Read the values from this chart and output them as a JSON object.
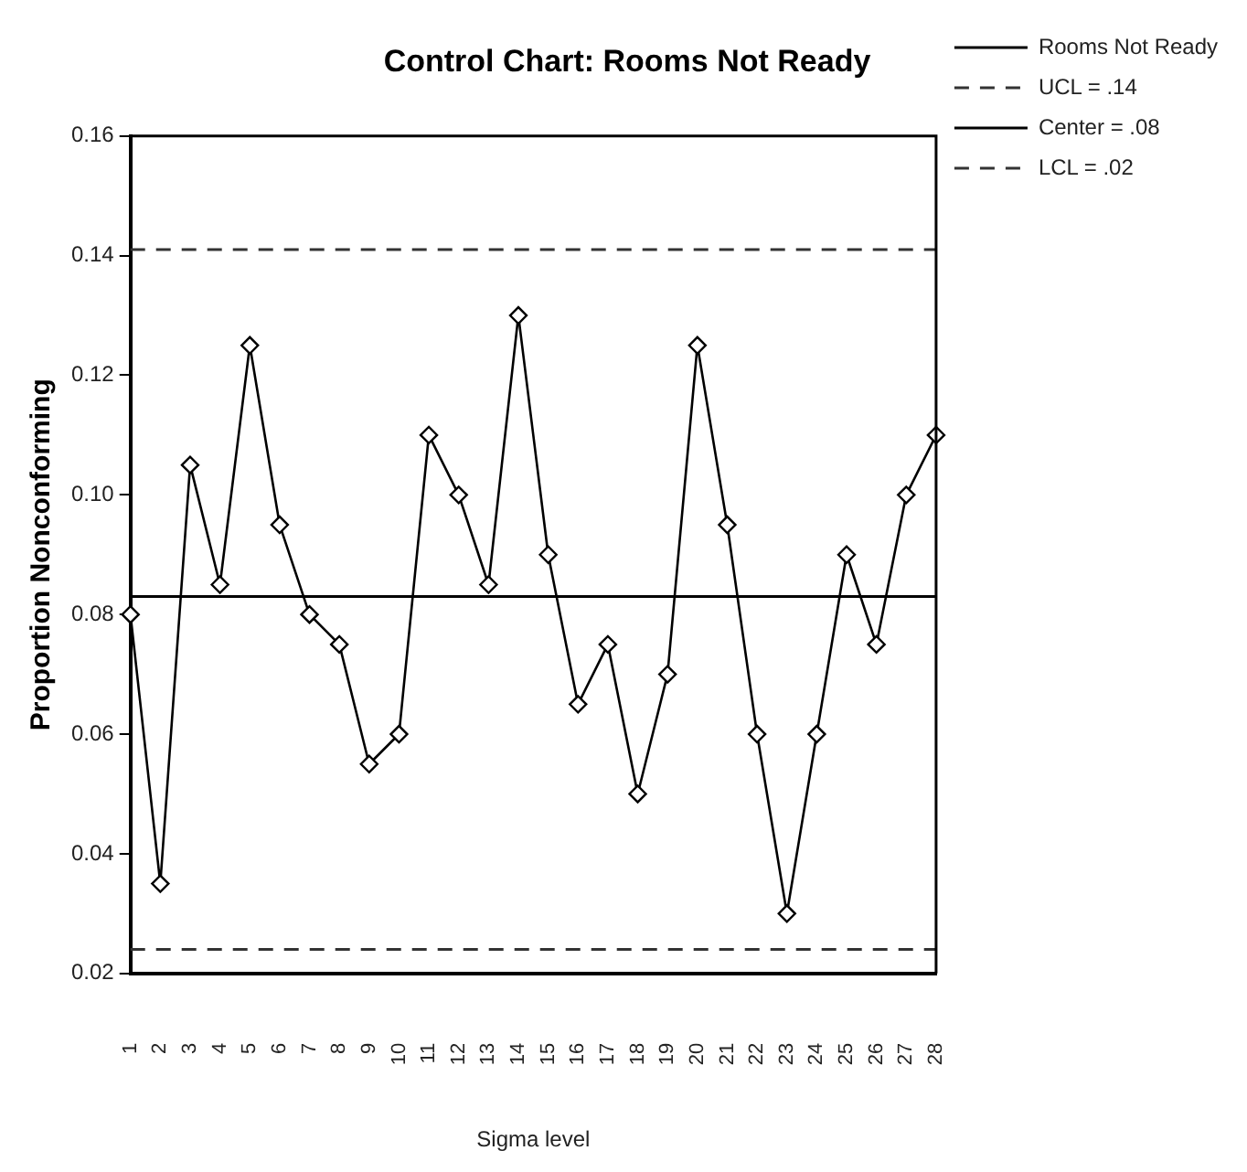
{
  "chart_data": {
    "type": "line",
    "title": "Control Chart: Rooms Not Ready",
    "xlabel": "Sigma level",
    "ylabel": "Proportion Nonconforming",
    "categories": [
      "1",
      "2",
      "3",
      "4",
      "5",
      "6",
      "7",
      "8",
      "9",
      "10",
      "11",
      "12",
      "13",
      "14",
      "15",
      "16",
      "17",
      "18",
      "19",
      "20",
      "21",
      "22",
      "23",
      "24",
      "25",
      "26",
      "27",
      "28"
    ],
    "series": [
      {
        "name": "Rooms Not Ready",
        "color": "#000000",
        "values": [
          0.08,
          0.035,
          0.105,
          0.085,
          0.125,
          0.095,
          0.08,
          0.075,
          0.055,
          0.06,
          0.11,
          0.1,
          0.085,
          0.13,
          0.09,
          0.065,
          0.075,
          0.05,
          0.07,
          0.125,
          0.095,
          0.06,
          0.03,
          0.06,
          0.09,
          0.075,
          0.1,
          0.11
        ]
      }
    ],
    "ref_lines": [
      {
        "axis": "y",
        "value": 0.141,
        "label": "UCL = .14",
        "color": "#333333",
        "line_style": "dashed"
      },
      {
        "axis": "y",
        "value": 0.083,
        "label": "Center = .08",
        "color": "#000000",
        "line_style": "solid"
      },
      {
        "axis": "y",
        "value": 0.024,
        "label": "LCL = .02",
        "color": "#333333",
        "line_style": "dashed"
      }
    ],
    "ylim": [
      0.02,
      0.16
    ],
    "yticks": [
      {
        "value": 0.02,
        "label": "0.02"
      },
      {
        "value": 0.04,
        "label": "0.04"
      },
      {
        "value": 0.06,
        "label": "0.06"
      },
      {
        "value": 0.08,
        "label": "0.08"
      },
      {
        "value": 0.1,
        "label": "0.10"
      },
      {
        "value": 0.12,
        "label": "0.12"
      },
      {
        "value": 0.14,
        "label": "0.14"
      },
      {
        "value": 0.16,
        "label": "0.16"
      }
    ],
    "grid": false,
    "legend": "right",
    "marker": "diamond",
    "line_style": "solid"
  }
}
